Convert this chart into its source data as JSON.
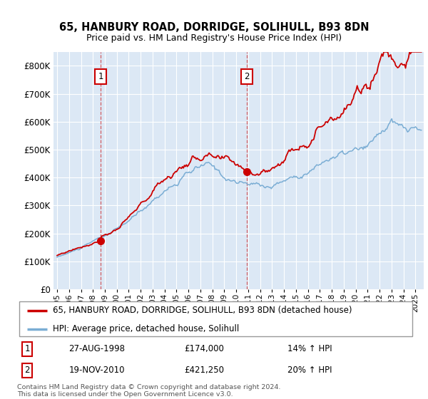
{
  "title1": "65, HANBURY ROAD, DORRIDGE, SOLIHULL, B93 8DN",
  "title2": "Price paid vs. HM Land Registry's House Price Index (HPI)",
  "background_color": "#ffffff",
  "plot_bg": "#dce8f5",
  "legend_label_red": "65, HANBURY ROAD, DORRIDGE, SOLIHULL, B93 8DN (detached house)",
  "legend_label_blue": "HPI: Average price, detached house, Solihull",
  "red_color": "#cc0000",
  "blue_color": "#7aadd4",
  "annotation1_date": "27-AUG-1998",
  "annotation1_value": "£174,000",
  "annotation1_hpi": "14% ↑ HPI",
  "annotation2_date": "19-NOV-2010",
  "annotation2_value": "£421,250",
  "annotation2_hpi": "20% ↑ HPI",
  "footer": "Contains HM Land Registry data © Crown copyright and database right 2024.\nThis data is licensed under the Open Government Licence v3.0.",
  "ylim": [
    0,
    850000
  ],
  "yticks": [
    0,
    100000,
    200000,
    300000,
    400000,
    500000,
    600000,
    700000,
    800000
  ],
  "ytick_labels": [
    "£0",
    "£100K",
    "£200K",
    "£300K",
    "£400K",
    "£500K",
    "£600K",
    "£700K",
    "£800K"
  ],
  "sale1_x": 1998.65,
  "sale1_y": 174000,
  "sale2_x": 2010.88,
  "sale2_y": 421250,
  "xmin": 1995.0,
  "xmax": 2025.5
}
